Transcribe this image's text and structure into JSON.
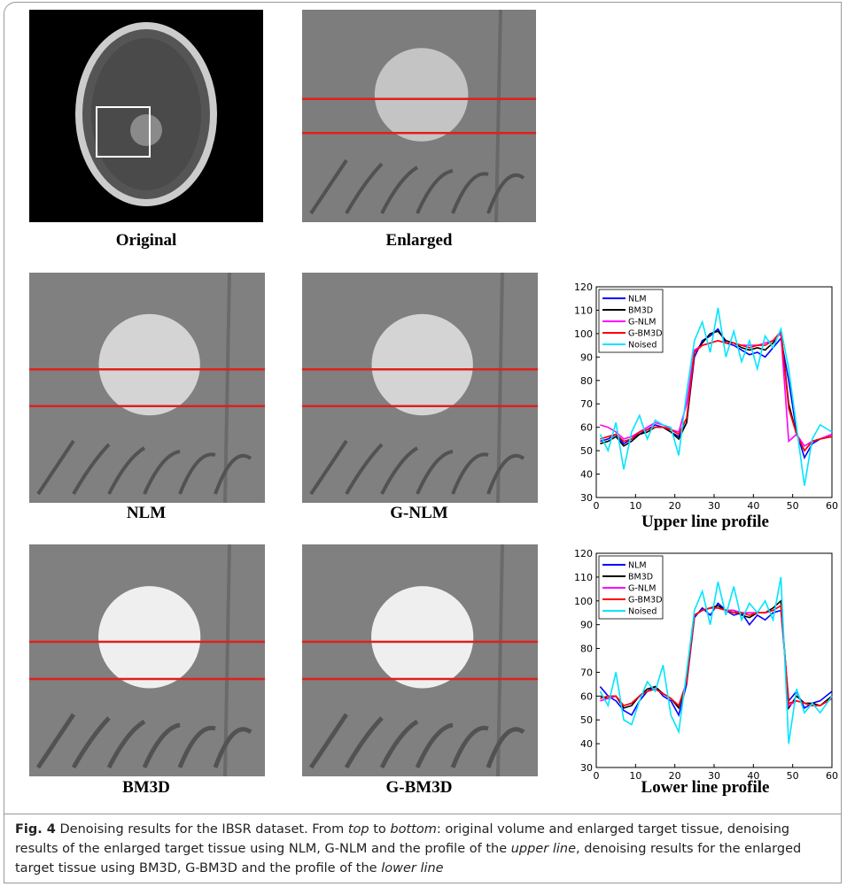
{
  "panels": [
    {
      "label": "Original"
    },
    {
      "label": "Enlarged"
    },
    {
      "label": "NLM"
    },
    {
      "label": "G-NLM"
    },
    {
      "label": "BM3D"
    },
    {
      "label": "G-BM3D"
    }
  ],
  "charts": [
    {
      "type": "line",
      "title": "Upper line profile",
      "xlim": [
        0,
        60
      ],
      "ylim": [
        30,
        120
      ],
      "xticks": [
        0,
        10,
        20,
        30,
        40,
        50,
        60
      ],
      "yticks": [
        30,
        40,
        50,
        60,
        70,
        80,
        90,
        100,
        110,
        120
      ],
      "legend": "upper-left",
      "x": [
        1,
        3,
        5,
        7,
        9,
        11,
        13,
        15,
        17,
        19,
        21,
        23,
        25,
        27,
        29,
        31,
        33,
        35,
        37,
        39,
        41,
        43,
        45,
        47,
        49,
        51,
        53,
        55,
        57,
        60
      ],
      "series": [
        {
          "name": "NLM",
          "color": "#0000ff",
          "values": [
            54,
            55,
            57,
            53,
            55,
            57,
            59,
            61,
            60,
            58,
            56,
            62,
            90,
            97,
            99,
            102,
            96,
            95,
            93,
            91,
            92,
            90,
            94,
            98,
            80,
            58,
            47,
            53,
            55,
            57
          ]
        },
        {
          "name": "BM3D",
          "color": "#000000",
          "values": [
            53,
            54,
            56,
            52,
            54,
            57,
            58,
            60,
            60,
            58,
            55,
            62,
            92,
            96,
            100,
            101,
            97,
            96,
            94,
            93,
            94,
            93,
            96,
            101,
            70,
            57,
            50,
            54,
            55,
            56
          ]
        },
        {
          "name": "G-NLM",
          "color": "#ff00ff",
          "values": [
            61,
            60,
            58,
            55,
            56,
            58,
            60,
            62,
            61,
            59,
            58,
            70,
            93,
            95,
            96,
            97,
            96,
            96,
            95,
            95,
            95,
            96,
            97,
            100,
            54,
            57,
            52,
            54,
            55,
            57
          ]
        },
        {
          "name": "G-BM3D",
          "color": "#ff0000",
          "values": [
            55,
            56,
            57,
            54,
            55,
            58,
            59,
            60,
            60,
            59,
            57,
            64,
            92,
            95,
            96,
            97,
            96,
            96,
            95,
            94,
            95,
            95,
            97,
            101,
            68,
            57,
            50,
            54,
            55,
            56
          ]
        },
        {
          "name": "Noised",
          "color": "#00e5ff",
          "values": [
            57,
            50,
            62,
            42,
            58,
            65,
            55,
            63,
            61,
            60,
            48,
            75,
            97,
            105,
            92,
            111,
            90,
            101,
            88,
            97,
            85,
            99,
            94,
            102,
            85,
            60,
            35,
            55,
            61,
            58
          ]
        }
      ]
    },
    {
      "type": "line",
      "title": "Lower line profile",
      "xlim": [
        0,
        60
      ],
      "ylim": [
        30,
        120
      ],
      "xticks": [
        0,
        10,
        20,
        30,
        40,
        50,
        60
      ],
      "yticks": [
        30,
        40,
        50,
        60,
        70,
        80,
        90,
        100,
        110,
        120
      ],
      "legend": "upper-left",
      "x": [
        1,
        3,
        5,
        7,
        9,
        11,
        13,
        15,
        17,
        19,
        21,
        23,
        25,
        27,
        29,
        31,
        33,
        35,
        37,
        39,
        41,
        43,
        45,
        47,
        49,
        51,
        53,
        55,
        57,
        60
      ],
      "series": [
        {
          "name": "NLM",
          "color": "#0000ff",
          "values": [
            64,
            60,
            58,
            54,
            52,
            58,
            62,
            64,
            60,
            58,
            52,
            65,
            93,
            97,
            94,
            99,
            96,
            94,
            95,
            90,
            94,
            92,
            95,
            96,
            58,
            62,
            55,
            57,
            58,
            62
          ]
        },
        {
          "name": "BM3D",
          "color": "#000000",
          "values": [
            60,
            59,
            60,
            55,
            56,
            60,
            63,
            64,
            61,
            59,
            55,
            66,
            94,
            96,
            97,
            98,
            96,
            96,
            94,
            93,
            95,
            95,
            97,
            100,
            55,
            60,
            57,
            57,
            56,
            60
          ]
        },
        {
          "name": "G-NLM",
          "color": "#ff00ff",
          "values": [
            58,
            59,
            60,
            56,
            57,
            60,
            62,
            63,
            61,
            59,
            56,
            66,
            94,
            96,
            97,
            97,
            96,
            96,
            95,
            95,
            95,
            95,
            96,
            98,
            56,
            58,
            57,
            56,
            56,
            59
          ]
        },
        {
          "name": "G-BM3D",
          "color": "#ff0000",
          "values": [
            59,
            60,
            60,
            56,
            57,
            60,
            62,
            63,
            61,
            59,
            56,
            66,
            94,
            96,
            97,
            97,
            96,
            95,
            95,
            94,
            95,
            95,
            96,
            98,
            57,
            58,
            57,
            56,
            56,
            59
          ]
        },
        {
          "name": "Noised",
          "color": "#00e5ff",
          "values": [
            62,
            56,
            70,
            50,
            48,
            58,
            66,
            62,
            73,
            52,
            45,
            70,
            96,
            104,
            90,
            108,
            94,
            106,
            92,
            99,
            95,
            100,
            92,
            110,
            40,
            63,
            53,
            57,
            53,
            60
          ]
        }
      ]
    }
  ],
  "caption": {
    "label": "Fig. 4",
    "parts": [
      {
        "text": " Denoising results for the IBSR dataset. From "
      },
      {
        "text": "top",
        "italic": true
      },
      {
        "text": " to "
      },
      {
        "text": "bottom",
        "italic": true
      },
      {
        "text": ": original volume and enlarged target tissue, denoising results of the enlarged target tissue using NLM, G-NLM and the profile of the "
      },
      {
        "text": "upper line",
        "italic": true
      },
      {
        "text": ", denoising results for the enlarged target tissue using BM3D, G-BM3D and the profile of the "
      },
      {
        "text": "lower line",
        "italic": true
      }
    ]
  }
}
